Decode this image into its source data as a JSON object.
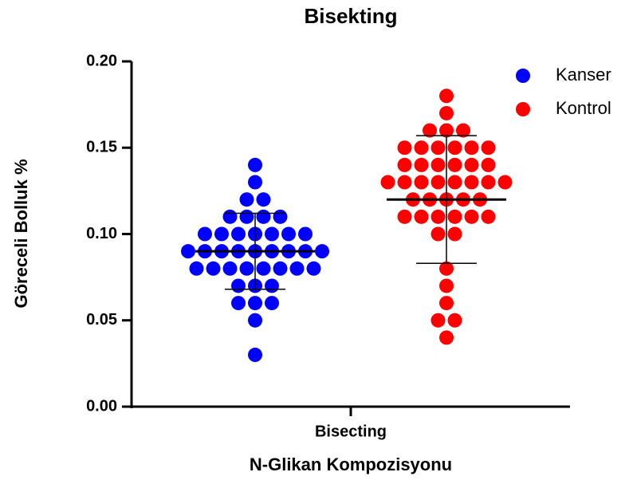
{
  "chart_data": {
    "type": "scatter",
    "title": "Bisekting",
    "x_label": "N-Glikan Kompozisyonu",
    "y_label": "Göreceli Bolluk %",
    "categories": [
      "Bisecting"
    ],
    "ylim": [
      0,
      0.2
    ],
    "yticks": [
      {
        "value": 0,
        "label": "0.00"
      },
      {
        "value": 0.05,
        "label": "0.05"
      },
      {
        "value": 0.1,
        "label": "0.10"
      },
      {
        "value": 0.15,
        "label": "0.15"
      },
      {
        "value": 0.2,
        "label": "0.20"
      }
    ],
    "legend": "top-right",
    "series": [
      {
        "name": "Kanser",
        "color": "#0000ff",
        "mean": 0.09,
        "sd": 0.022,
        "values": [
          0.14,
          0.13,
          0.12,
          0.12,
          0.11,
          0.11,
          0.11,
          0.11,
          0.1,
          0.1,
          0.1,
          0.1,
          0.1,
          0.1,
          0.1,
          0.09,
          0.09,
          0.09,
          0.09,
          0.09,
          0.09,
          0.09,
          0.09,
          0.09,
          0.08,
          0.08,
          0.08,
          0.08,
          0.08,
          0.08,
          0.08,
          0.08,
          0.07,
          0.07,
          0.07,
          0.06,
          0.06,
          0.06,
          0.05,
          0.03
        ]
      },
      {
        "name": "Kontrol",
        "color": "#ff0000",
        "mean": 0.12,
        "sd": 0.037,
        "values": [
          0.18,
          0.17,
          0.16,
          0.16,
          0.16,
          0.15,
          0.15,
          0.15,
          0.15,
          0.15,
          0.15,
          0.14,
          0.14,
          0.14,
          0.14,
          0.14,
          0.14,
          0.13,
          0.13,
          0.13,
          0.13,
          0.13,
          0.13,
          0.13,
          0.13,
          0.12,
          0.12,
          0.12,
          0.12,
          0.12,
          0.11,
          0.11,
          0.11,
          0.11,
          0.11,
          0.11,
          0.1,
          0.1,
          0.08,
          0.07,
          0.06,
          0.05,
          0.05,
          0.04
        ]
      }
    ]
  }
}
